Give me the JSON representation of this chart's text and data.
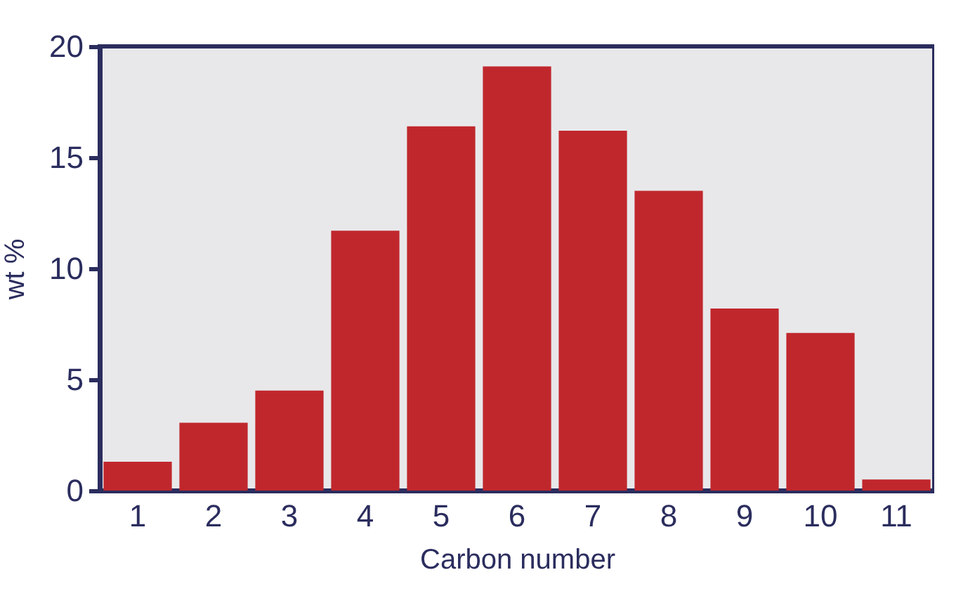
{
  "chart_data": {
    "type": "bar",
    "xlabel": "Carbon number",
    "ylabel": "wt %",
    "categories": [
      "1",
      "2",
      "3",
      "4",
      "5",
      "6",
      "7",
      "8",
      "9",
      "10",
      "11"
    ],
    "values": [
      1.3,
      3.05,
      4.5,
      11.7,
      16.4,
      19.1,
      16.2,
      13.5,
      8.2,
      7.1,
      0.5
    ],
    "color": "#c0272d",
    "ylim": [
      0,
      20
    ],
    "yticks": [
      0,
      5,
      10,
      15,
      20
    ],
    "grid": false
  }
}
